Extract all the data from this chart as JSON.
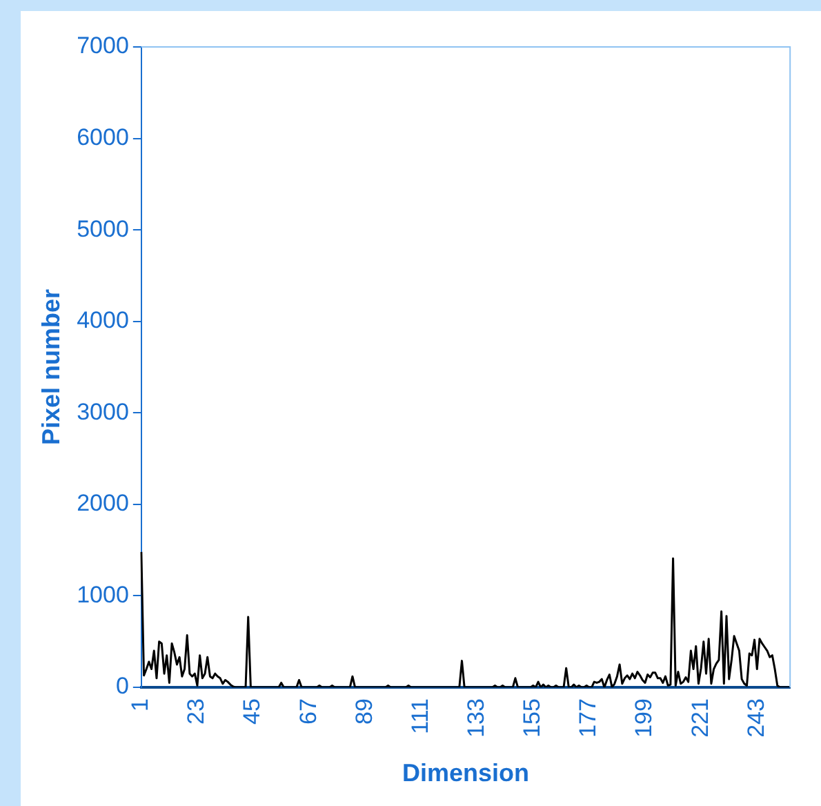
{
  "chart_data": {
    "type": "line",
    "xlabel": "Dimension",
    "ylabel": "Pixel number",
    "categories": [
      "1",
      null,
      null,
      null,
      null,
      null,
      null,
      null,
      null,
      null,
      null,
      null,
      null,
      null,
      null,
      null,
      null,
      null,
      null,
      null,
      null,
      null,
      "23",
      null,
      null,
      null,
      null,
      null,
      null,
      null,
      null,
      null,
      null,
      null,
      null,
      null,
      null,
      null,
      null,
      null,
      null,
      null,
      null,
      null,
      "45",
      null,
      null,
      null,
      null,
      null,
      null,
      null,
      null,
      null,
      null,
      null,
      null,
      null,
      null,
      null,
      null,
      null,
      null,
      null,
      null,
      null,
      "67",
      null,
      null,
      null,
      null,
      null,
      null,
      null,
      null,
      null,
      null,
      null,
      null,
      null,
      null,
      null,
      null,
      null,
      null,
      null,
      null,
      null,
      "89",
      null,
      null,
      null,
      null,
      null,
      null,
      null,
      null,
      null,
      null,
      null,
      null,
      null,
      null,
      null,
      null,
      null,
      null,
      null,
      null,
      null,
      "111",
      null,
      null,
      null,
      null,
      null,
      null,
      null,
      null,
      null,
      null,
      null,
      null,
      null,
      null,
      null,
      null,
      null,
      null,
      null,
      null,
      null,
      "133",
      null,
      null,
      null,
      null,
      null,
      null,
      null,
      null,
      null,
      null,
      null,
      null,
      null,
      null,
      null,
      null,
      null,
      null,
      null,
      null,
      null,
      "155",
      null,
      null,
      null,
      null,
      null,
      null,
      null,
      null,
      null,
      null,
      null,
      null,
      null,
      null,
      null,
      null,
      null,
      null,
      null,
      null,
      null,
      "177",
      null,
      null,
      null,
      null,
      null,
      null,
      null,
      null,
      null,
      null,
      null,
      null,
      null,
      null,
      null,
      null,
      null,
      null,
      null,
      null,
      null,
      "199",
      null,
      null,
      null,
      null,
      null,
      null,
      null,
      null,
      null,
      null,
      null,
      null,
      null,
      null,
      null,
      null,
      null,
      null,
      null,
      null,
      null,
      "221",
      null,
      null,
      null,
      null,
      null,
      null,
      null,
      null,
      null,
      null,
      null,
      null,
      null,
      null,
      null,
      null,
      null,
      null,
      null,
      null,
      null,
      "243",
      null,
      null,
      null,
      null,
      null,
      null,
      null,
      null,
      null,
      null,
      null,
      null,
      null
    ],
    "series": [
      {
        "color": "#000000",
        "values": [
          1480,
          130,
          200,
          280,
          200,
          400,
          100,
          500,
          480,
          150,
          350,
          50,
          480,
          380,
          250,
          330,
          120,
          200,
          570,
          150,
          120,
          150,
          20,
          350,
          100,
          150,
          330,
          120,
          100,
          150,
          120,
          100,
          40,
          80,
          60,
          30,
          10,
          0,
          0,
          0,
          0,
          0,
          770,
          0,
          0,
          0,
          0,
          0,
          0,
          0,
          0,
          0,
          0,
          0,
          0,
          50,
          0,
          0,
          0,
          0,
          0,
          0,
          80,
          0,
          0,
          0,
          0,
          0,
          0,
          0,
          20,
          0,
          0,
          0,
          0,
          20,
          0,
          0,
          0,
          0,
          0,
          0,
          0,
          120,
          0,
          0,
          0,
          0,
          0,
          0,
          0,
          0,
          0,
          0,
          0,
          0,
          0,
          20,
          0,
          0,
          0,
          0,
          0,
          0,
          0,
          20,
          0,
          0,
          0,
          0,
          0,
          0,
          0,
          0,
          0,
          0,
          0,
          0,
          0,
          0,
          0,
          0,
          0,
          0,
          0,
          0,
          290,
          0,
          0,
          0,
          0,
          0,
          0,
          0,
          0,
          0,
          0,
          0,
          0,
          20,
          0,
          0,
          20,
          0,
          0,
          0,
          0,
          100,
          0,
          0,
          0,
          0,
          0,
          0,
          20,
          0,
          60,
          0,
          30,
          0,
          20,
          0,
          0,
          20,
          0,
          0,
          0,
          210,
          0,
          0,
          30,
          0,
          20,
          0,
          0,
          20,
          0,
          0,
          60,
          50,
          60,
          90,
          0,
          80,
          140,
          0,
          40,
          120,
          250,
          40,
          100,
          130,
          90,
          150,
          100,
          170,
          130,
          80,
          50,
          140,
          110,
          160,
          160,
          100,
          100,
          50,
          120,
          20,
          30,
          1410,
          20,
          170,
          40,
          60,
          110,
          60,
          400,
          200,
          450,
          40,
          210,
          500,
          150,
          530,
          40,
          200,
          260,
          300,
          830,
          40,
          780,
          90,
          300,
          560,
          480,
          400,
          90,
          40,
          20,
          370,
          350,
          520,
          200,
          530,
          480,
          440,
          400,
          330,
          350,
          200,
          20,
          0,
          0,
          0,
          0,
          0
        ]
      }
    ],
    "ylim": [
      0,
      7000
    ],
    "yticks": [
      0,
      1000,
      2000,
      3000,
      4000,
      5000,
      6000,
      7000
    ],
    "grid": false,
    "legend": false,
    "marker": "none",
    "line_style": "solid"
  }
}
